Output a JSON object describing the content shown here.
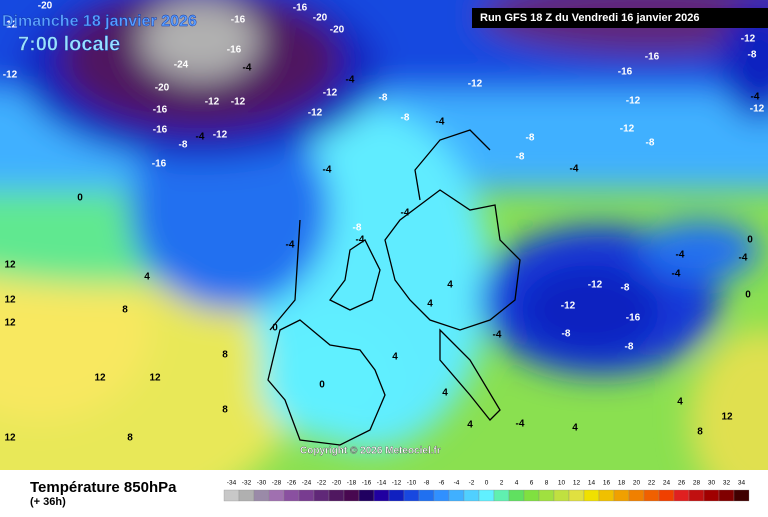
{
  "header": {
    "title": "Dimanche 18 janvier 2026",
    "time": "7:00 locale",
    "run": "Run GFS 18 Z du Vendredi 16 janvier 2026"
  },
  "copyright": "Copyright © 2026 Meteociel.fr",
  "footer": {
    "title": "Température 850hPa",
    "subtitle": "(+ 36h)"
  },
  "legend": {
    "values": [
      -34,
      -32,
      -30,
      -28,
      -26,
      -24,
      -22,
      -20,
      -18,
      -16,
      -14,
      -12,
      -10,
      -8,
      -6,
      -4,
      -2,
      0,
      2,
      4,
      6,
      8,
      10,
      12,
      14,
      16,
      18,
      20,
      22,
      24,
      26,
      28,
      30,
      32,
      34
    ],
    "colors": [
      "#c8c8c8",
      "#b0b0b0",
      "#9a8aa8",
      "#a070b0",
      "#8a50a0",
      "#783c90",
      "#602878",
      "#501860",
      "#480850",
      "#200060",
      "#2000a0",
      "#1020c0",
      "#1848e0",
      "#2070f0",
      "#3090ff",
      "#40b0ff",
      "#50d0ff",
      "#60f0ff",
      "#60f0b0",
      "#60e060",
      "#80e040",
      "#a0e040",
      "#c0e040",
      "#e0e040",
      "#f0e000",
      "#f0c000",
      "#f0a000",
      "#f08000",
      "#f06000",
      "#f04000",
      "#e02020",
      "#c01010",
      "#a00000",
      "#800000",
      "#400000"
    ]
  },
  "map_labels": [
    -20,
    -16,
    -16,
    -20,
    -20,
    -16,
    -24,
    -20,
    -4,
    -12,
    -12,
    -16,
    -16,
    -16,
    -8,
    -12,
    -4,
    -12,
    -8,
    -12,
    -4,
    -8,
    -4,
    -12,
    -16,
    -16,
    -12,
    -12,
    -8,
    -8,
    -4,
    -8,
    -4,
    0,
    -4,
    4,
    12,
    12,
    12,
    8,
    12,
    12,
    8,
    8,
    12,
    8,
    0,
    0,
    4,
    4,
    4,
    -4,
    -4,
    -8,
    -12,
    -8,
    -12,
    -8,
    -16,
    -8,
    -4,
    -4,
    -12,
    -8,
    -4,
    0,
    0,
    4,
    8,
    12,
    4,
    -4,
    4,
    -4,
    4,
    -16,
    -12,
    -4,
    -12,
    -12
  ]
}
